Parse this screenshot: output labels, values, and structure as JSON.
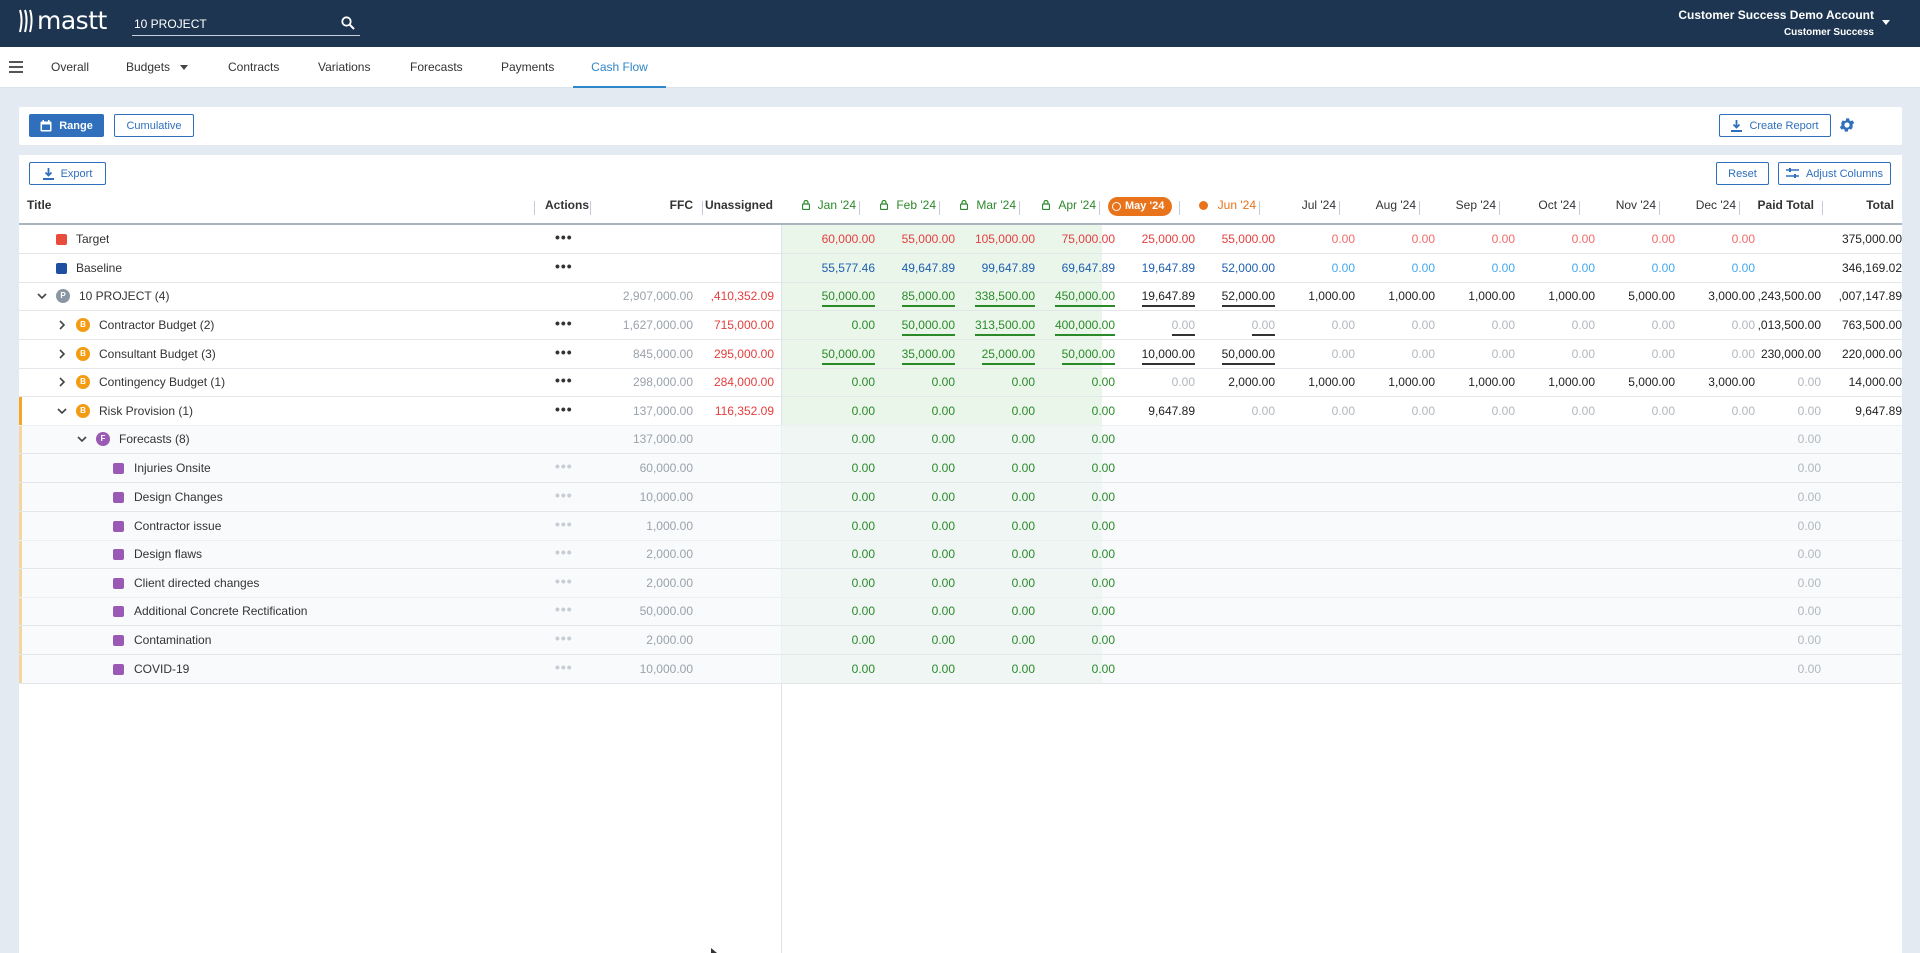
{
  "app": {
    "brand": "mastt",
    "project_value": "10 PROJECT",
    "account_name": "Customer Success Demo Account",
    "account_role": "Customer Success"
  },
  "nav": {
    "tabs": [
      "Overall",
      "Budgets",
      "Contracts",
      "Variations",
      "Forecasts",
      "Payments",
      "Cash Flow"
    ],
    "active": "Cash Flow"
  },
  "toolbar": {
    "range": "Range",
    "cumulative": "Cumulative",
    "create_report": "Create Report",
    "export": "Export",
    "reset": "Reset",
    "adjust_columns": "Adjust Columns"
  },
  "columns": {
    "title": "Title",
    "actions": "Actions",
    "ffc": "FFC",
    "unassigned": "Unassigned",
    "months": [
      "Jan '24",
      "Feb '24",
      "Mar '24",
      "Apr '24",
      "May '24",
      "Jun '24",
      "Jul '24",
      "Aug '24",
      "Sep '24",
      "Oct '24",
      "Nov '24",
      "Dec '24"
    ],
    "locked_months": 4,
    "current_month_index": 4,
    "next_month_index": 5,
    "paid_total": "Paid Total",
    "total": "Total"
  },
  "rows": [
    {
      "title": "Target",
      "marker": "square",
      "marker_color": "#e84c3d",
      "actions": true,
      "ffc": "",
      "unassigned": "",
      "months": [
        "60,000.00",
        "55,000.00",
        "105,000.00",
        "75,000.00",
        "25,000.00",
        "55,000.00",
        "0.00",
        "0.00",
        "0.00",
        "0.00",
        "0.00",
        "0.00"
      ],
      "paid_total": "",
      "total": "375,000.00"
    },
    {
      "title": "Baseline",
      "marker": "square",
      "marker_color": "#1e4fa0",
      "actions": true,
      "ffc": "",
      "unassigned": "",
      "months": [
        "55,577.46",
        "49,647.89",
        "99,647.89",
        "69,647.89",
        "19,647.89",
        "52,000.00",
        "0.00",
        "0.00",
        "0.00",
        "0.00",
        "0.00",
        "0.00"
      ],
      "paid_total": "",
      "total": "346,169.02"
    },
    {
      "title": "10 PROJECT (4)",
      "marker": "circle",
      "badge": "P",
      "marker_color": "#8a96a3",
      "expanded": true,
      "actions": false,
      "ffc": "2,907,000.00",
      "unassigned": ",410,352.09",
      "months": [
        "50,000.00",
        "85,000.00",
        "338,500.00",
        "450,000.00",
        "19,647.89",
        "52,000.00",
        "1,000.00",
        "1,000.00",
        "1,000.00",
        "1,000.00",
        "5,000.00",
        "3,000.00"
      ],
      "paid_total": ",243,500.00",
      "total": ",007,147.89"
    },
    {
      "title": "Contractor Budget (2)",
      "marker": "circle",
      "badge": "B",
      "marker_color": "#f39c12",
      "expanded": false,
      "actions": true,
      "ffc": "1,627,000.00",
      "unassigned": "715,000.00",
      "months": [
        "0.00",
        "50,000.00",
        "313,500.00",
        "400,000.00",
        "0.00",
        "0.00",
        "0.00",
        "0.00",
        "0.00",
        "0.00",
        "0.00",
        "0.00"
      ],
      "paid_total": ",013,500.00",
      "total": "763,500.00"
    },
    {
      "title": "Consultant Budget (3)",
      "marker": "circle",
      "badge": "B",
      "marker_color": "#f39c12",
      "expanded": false,
      "actions": true,
      "ffc": "845,000.00",
      "unassigned": "295,000.00",
      "months": [
        "50,000.00",
        "35,000.00",
        "25,000.00",
        "50,000.00",
        "10,000.00",
        "50,000.00",
        "0.00",
        "0.00",
        "0.00",
        "0.00",
        "0.00",
        "0.00"
      ],
      "paid_total": "230,000.00",
      "total": "220,000.00"
    },
    {
      "title": "Contingency Budget (1)",
      "marker": "circle",
      "badge": "B",
      "marker_color": "#f39c12",
      "expanded": false,
      "actions": true,
      "ffc": "298,000.00",
      "unassigned": "284,000.00",
      "months": [
        "0.00",
        "0.00",
        "0.00",
        "0.00",
        "0.00",
        "2,000.00",
        "1,000.00",
        "1,000.00",
        "1,000.00",
        "1,000.00",
        "5,000.00",
        "3,000.00"
      ],
      "paid_total": "0.00",
      "total": "14,000.00"
    },
    {
      "title": "Risk Provision (1)",
      "marker": "circle",
      "badge": "B",
      "marker_color": "#f39c12",
      "expanded": true,
      "actions": true,
      "ffc": "137,000.00",
      "unassigned": "116,352.09",
      "months": [
        "0.00",
        "0.00",
        "0.00",
        "0.00",
        "9,647.89",
        "0.00",
        "0.00",
        "0.00",
        "0.00",
        "0.00",
        "0.00",
        "0.00"
      ],
      "paid_total": "0.00",
      "total": "9,647.89"
    },
    {
      "title": "Forecasts (8)",
      "marker": "circle",
      "badge": "F",
      "marker_color": "#9b59b6",
      "expanded": true,
      "actions": false,
      "ffc": "137,000.00",
      "unassigned": "",
      "months": [
        "0.00",
        "0.00",
        "0.00",
        "0.00",
        "",
        "",
        "",
        "",
        "",
        "",
        "",
        ""
      ],
      "paid_total": "0.00",
      "total": ""
    },
    {
      "title": "Injuries Onsite",
      "marker": "square",
      "marker_color": "#9b59b6",
      "actions": true,
      "ffc": "60,000.00",
      "unassigned": "",
      "months": [
        "0.00",
        "0.00",
        "0.00",
        "0.00",
        "",
        "",
        "",
        "",
        "",
        "",
        "",
        ""
      ],
      "paid_total": "0.00",
      "total": ""
    },
    {
      "title": "Design Changes",
      "marker": "square",
      "marker_color": "#9b59b6",
      "actions": true,
      "ffc": "10,000.00",
      "unassigned": "",
      "months": [
        "0.00",
        "0.00",
        "0.00",
        "0.00",
        "",
        "",
        "",
        "",
        "",
        "",
        "",
        ""
      ],
      "paid_total": "0.00",
      "total": ""
    },
    {
      "title": "Contractor issue",
      "marker": "square",
      "marker_color": "#9b59b6",
      "actions": true,
      "ffc": "1,000.00",
      "unassigned": "",
      "months": [
        "0.00",
        "0.00",
        "0.00",
        "0.00",
        "",
        "",
        "",
        "",
        "",
        "",
        "",
        ""
      ],
      "paid_total": "0.00",
      "total": ""
    },
    {
      "title": "Design flaws",
      "marker": "square",
      "marker_color": "#9b59b6",
      "actions": true,
      "ffc": "2,000.00",
      "unassigned": "",
      "months": [
        "0.00",
        "0.00",
        "0.00",
        "0.00",
        "",
        "",
        "",
        "",
        "",
        "",
        "",
        ""
      ],
      "paid_total": "0.00",
      "total": ""
    },
    {
      "title": "Client directed changes",
      "marker": "square",
      "marker_color": "#9b59b6",
      "actions": true,
      "ffc": "2,000.00",
      "unassigned": "",
      "months": [
        "0.00",
        "0.00",
        "0.00",
        "0.00",
        "",
        "",
        "",
        "",
        "",
        "",
        "",
        ""
      ],
      "paid_total": "0.00",
      "total": ""
    },
    {
      "title": "Additional Concrete Rectification",
      "marker": "square",
      "marker_color": "#9b59b6",
      "actions": true,
      "ffc": "50,000.00",
      "unassigned": "",
      "months": [
        "0.00",
        "0.00",
        "0.00",
        "0.00",
        "",
        "",
        "",
        "",
        "",
        "",
        "",
        ""
      ],
      "paid_total": "0.00",
      "total": ""
    },
    {
      "title": "Contamination",
      "marker": "square",
      "marker_color": "#9b59b6",
      "actions": true,
      "ffc": "2,000.00",
      "unassigned": "",
      "months": [
        "0.00",
        "0.00",
        "0.00",
        "0.00",
        "",
        "",
        "",
        "",
        "",
        "",
        "",
        ""
      ],
      "paid_total": "0.00",
      "total": ""
    },
    {
      "title": "COVID-19",
      "marker": "square",
      "marker_color": "#9b59b6",
      "actions": true,
      "ffc": "10,000.00",
      "unassigned": "",
      "months": [
        "0.00",
        "0.00",
        "0.00",
        "0.00",
        "",
        "",
        "",
        "",
        "",
        "",
        "",
        ""
      ],
      "paid_total": "0.00",
      "total": ""
    }
  ],
  "colors": {
    "header": "#1d3550",
    "accent": "#2f6fbc",
    "active_tab": "#2f86c8",
    "current_month": "#e8731b",
    "locked_band": "#eaf6ea",
    "risk_flag": "#f5a623"
  }
}
